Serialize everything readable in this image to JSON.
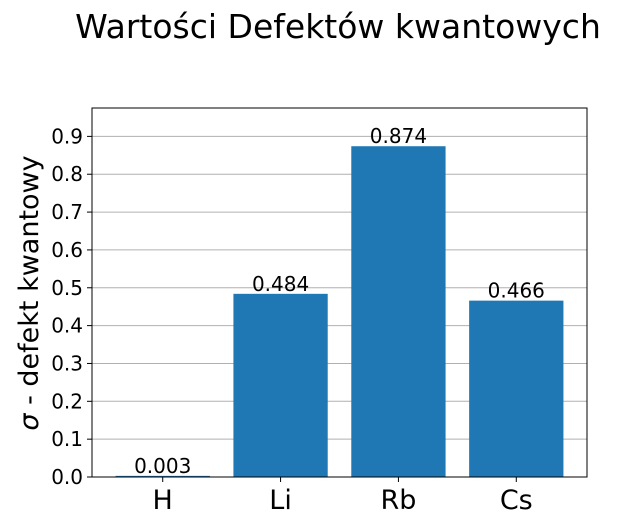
{
  "chart_data": {
    "type": "bar",
    "title": "Wartości Defektów kwantowych",
    "ylabel_symbol": "σ",
    "ylabel_text": " - defekt kwantowy",
    "xlabel": "",
    "categories": [
      "H",
      "Li",
      "Rb",
      "Cs"
    ],
    "values": [
      0.003,
      0.484,
      0.874,
      0.466
    ],
    "value_labels": [
      "0.003",
      "0.484",
      "0.874",
      "0.466"
    ],
    "ylim": [
      0,
      0.975
    ],
    "yticks": [
      0.0,
      0.1,
      0.2,
      0.3,
      0.4,
      0.5,
      0.6,
      0.7,
      0.8,
      0.9
    ],
    "ytick_labels": [
      "0.0",
      "0.1",
      "0.2",
      "0.3",
      "0.4",
      "0.5",
      "0.6",
      "0.7",
      "0.8",
      "0.9"
    ],
    "grid": "y",
    "bar_color": "#1f77b4"
  }
}
